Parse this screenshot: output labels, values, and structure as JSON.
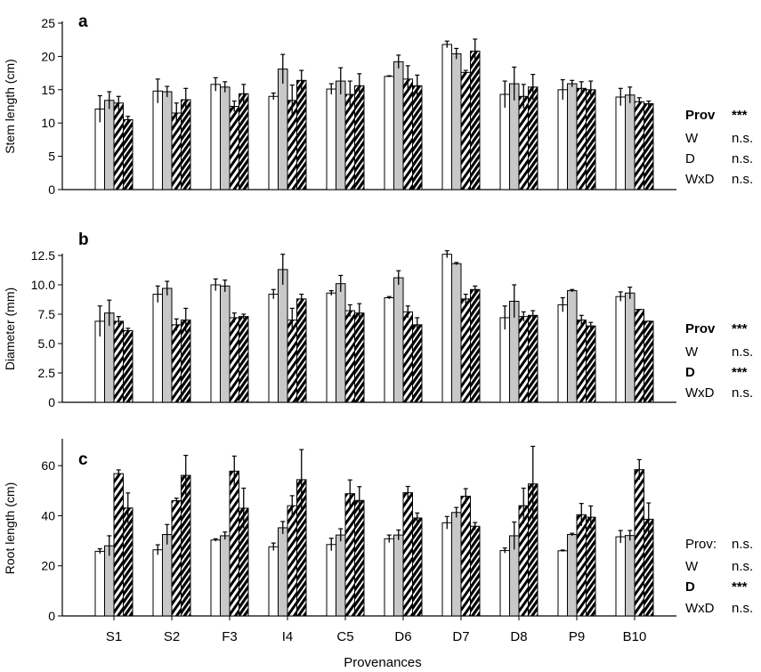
{
  "legend_colors": {
    "W_open": "#ffffff",
    "W_grey": "#c8c8c8",
    "stroke": "#000000"
  },
  "xlabel": "Provenances",
  "chart_data": [
    {
      "type": "bar",
      "panel": "a",
      "ylabel": "Stem length (cm)",
      "ylim": [
        0,
        25
      ],
      "yticks": [
        0,
        5,
        10,
        15,
        20,
        25
      ],
      "grid": false,
      "categories": [
        "S1",
        "S2",
        "F3",
        "I4",
        "C5",
        "D6",
        "D7",
        "D8",
        "P9",
        "B10"
      ],
      "series": [
        {
          "fill": "white",
          "values": [
            12.1,
            14.8,
            15.8,
            14.0,
            15.1,
            17.0,
            21.8,
            14.3,
            15.0,
            13.9
          ],
          "errors": [
            2.0,
            1.8,
            1.0,
            0.5,
            0.8,
            0.1,
            0.5,
            2.0,
            1.5,
            1.3
          ]
        },
        {
          "fill": "grey",
          "values": [
            13.4,
            14.7,
            15.4,
            18.1,
            16.3,
            19.2,
            20.4,
            15.9,
            15.9,
            14.2
          ],
          "errors": [
            1.3,
            0.8,
            0.8,
            2.2,
            2.0,
            1.0,
            0.8,
            2.5,
            0.5,
            1.2
          ]
        },
        {
          "fill": "hatched",
          "values": [
            13.0,
            11.5,
            12.5,
            13.4,
            14.3,
            16.6,
            17.6,
            14.0,
            15.2,
            13.2
          ],
          "errors": [
            1.0,
            1.5,
            0.8,
            2.3,
            2.0,
            2.0,
            0.3,
            1.8,
            1.0,
            0.6
          ]
        },
        {
          "fill": "hatched-dark",
          "values": [
            10.5,
            13.5,
            14.4,
            16.4,
            15.6,
            15.6,
            20.8,
            15.4,
            15.0,
            12.9
          ],
          "errors": [
            0.5,
            1.7,
            1.4,
            1.5,
            1.8,
            1.6,
            1.8,
            1.9,
            1.3,
            0.4
          ]
        }
      ],
      "stats": [
        {
          "label": "Prov",
          "value": "***",
          "bold": true
        },
        {
          "label": "W",
          "value": "n.s.",
          "bold": false
        },
        {
          "label": "D",
          "value": "n.s.",
          "bold": false
        },
        {
          "label": "WxD",
          "value": "n.s.",
          "bold": false
        }
      ]
    },
    {
      "type": "bar",
      "panel": "b",
      "ylabel": "Diameter (mm)",
      "ylim": [
        0,
        12.5
      ],
      "yticks": [
        0,
        2.5,
        5.0,
        7.5,
        10.0,
        12.5
      ],
      "grid": false,
      "categories": [
        "S1",
        "S2",
        "F3",
        "I4",
        "C5",
        "D6",
        "D7",
        "D8",
        "P9",
        "B10"
      ],
      "series": [
        {
          "fill": "white",
          "values": [
            6.9,
            9.2,
            10.0,
            9.2,
            9.3,
            8.9,
            12.6,
            7.2,
            8.3,
            9.0
          ],
          "errors": [
            1.3,
            0.7,
            0.5,
            0.4,
            0.2,
            0.1,
            0.3,
            1.0,
            0.6,
            0.4
          ]
        },
        {
          "fill": "grey",
          "values": [
            7.6,
            9.7,
            9.9,
            11.3,
            10.1,
            10.6,
            11.8,
            8.6,
            9.5,
            9.3
          ],
          "errors": [
            1.1,
            0.6,
            0.5,
            1.3,
            0.7,
            0.6,
            0.1,
            1.4,
            0.1,
            0.5
          ]
        },
        {
          "fill": "hatched",
          "values": [
            6.9,
            6.6,
            7.2,
            7.0,
            7.8,
            7.7,
            8.8,
            7.3,
            7.0,
            7.9
          ],
          "errors": [
            0.4,
            0.5,
            0.4,
            1.0,
            0.5,
            0.5,
            0.4,
            0.4,
            0.4,
            0.0
          ]
        },
        {
          "fill": "hatched-dark",
          "values": [
            6.1,
            7.0,
            7.3,
            8.8,
            7.6,
            6.6,
            9.6,
            7.4,
            6.5,
            6.9
          ],
          "errors": [
            0.2,
            1.0,
            0.2,
            0.4,
            0.8,
            0.6,
            0.3,
            0.4,
            0.3,
            0.0
          ]
        }
      ],
      "stats": [
        {
          "label": "Prov",
          "value": "***",
          "bold": true
        },
        {
          "label": "W",
          "value": "n.s.",
          "bold": false
        },
        {
          "label": "D",
          "value": "***",
          "bold": true
        },
        {
          "label": "WxD",
          "value": "n.s.",
          "bold": false
        }
      ]
    },
    {
      "type": "bar",
      "panel": "c",
      "ylabel": "Root length (cm)",
      "ylim": [
        0,
        70
      ],
      "yticks": [
        0,
        20,
        40,
        60
      ],
      "grid": false,
      "categories": [
        "S1",
        "S2",
        "F3",
        "I4",
        "C5",
        "D6",
        "D7",
        "D8",
        "P9",
        "B10"
      ],
      "series": [
        {
          "fill": "white",
          "values": [
            25.8,
            26.4,
            30.3,
            27.6,
            28.5,
            30.8,
            37.2,
            26.1,
            26.0,
            31.6
          ],
          "errors": [
            1.0,
            2.0,
            0.5,
            1.5,
            2.5,
            1.5,
            2.5,
            1.0,
            0.3,
            2.5
          ]
        },
        {
          "fill": "grey",
          "values": [
            28.0,
            32.5,
            32.0,
            35.2,
            32.3,
            32.3,
            41.3,
            32.0,
            32.5,
            32.1
          ],
          "errors": [
            4.0,
            4.0,
            1.5,
            2.5,
            2.5,
            2.0,
            2.0,
            5.5,
            0.5,
            2.0
          ]
        },
        {
          "fill": "hatched",
          "values": [
            56.8,
            46.0,
            57.8,
            44.0,
            48.8,
            49.2,
            47.8,
            44.0,
            40.4,
            58.4
          ],
          "errors": [
            1.5,
            1.0,
            6.0,
            4.0,
            5.5,
            2.5,
            3.0,
            7.0,
            4.5,
            4.0
          ]
        },
        {
          "fill": "hatched-dark",
          "values": [
            43.1,
            56.1,
            43.0,
            54.4,
            46.1,
            39.1,
            35.8,
            52.7,
            39.4,
            38.6
          ],
          "errors": [
            6.0,
            8.0,
            8.0,
            12.0,
            5.5,
            2.0,
            1.5,
            15.0,
            4.5,
            6.5
          ]
        }
      ],
      "stats": [
        {
          "label": "Prov:",
          "value": "n.s.",
          "bold": false
        },
        {
          "label": "W",
          "value": "n.s.",
          "bold": false
        },
        {
          "label": "D",
          "value": "***",
          "bold": true
        },
        {
          "label": "WxD",
          "value": "n.s.",
          "bold": false
        }
      ]
    }
  ]
}
